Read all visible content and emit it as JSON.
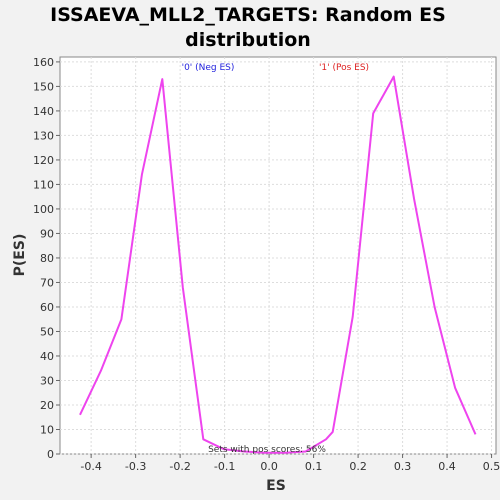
{
  "chart_data": {
    "type": "line",
    "title_lines": [
      "ISSAEVA_MLL2_TARGETS: Random ES",
      "distribution"
    ],
    "xlabel": "ES",
    "ylabel": "P(ES)",
    "xlim": [
      -0.47,
      0.51
    ],
    "ylim": [
      0,
      162
    ],
    "x_ticks": [
      -0.4,
      -0.3,
      -0.2,
      -0.1,
      0.0,
      0.1,
      0.2,
      0.3,
      0.4,
      0.5
    ],
    "x_tick_labels": [
      "-0.4",
      "-0.3",
      "-0.2",
      "-0.1",
      "0.0",
      "0.1",
      "0.2",
      "0.3",
      "0.4",
      "0.5"
    ],
    "y_ticks": [
      0,
      10,
      20,
      30,
      40,
      50,
      60,
      70,
      80,
      90,
      100,
      110,
      120,
      130,
      140,
      150,
      160
    ],
    "y_tick_labels": [
      "0",
      "10",
      "20",
      "30",
      "40",
      "50",
      "60",
      "70",
      "80",
      "90",
      "100",
      "110",
      "120",
      "130",
      "140",
      "150",
      "160"
    ],
    "grid": true,
    "line_color": "#ee44ee",
    "series": [
      {
        "x": [
          -0.425,
          -0.378,
          -0.332,
          -0.286,
          -0.24,
          -0.194,
          -0.148,
          -0.102,
          -0.056,
          -0.01,
          0.036,
          0.082,
          0.128,
          0.143,
          0.188,
          0.234,
          0.28,
          0.326,
          0.372,
          0.418,
          0.464
        ],
        "y": [
          16,
          34,
          55,
          114,
          153,
          68,
          6,
          2,
          1,
          0.5,
          0.5,
          1,
          6,
          9,
          56,
          139,
          154,
          104,
          60,
          27,
          8
        ]
      }
    ],
    "annotations": [
      {
        "text": "'0' (Neg ES)",
        "color": "#2222dd"
      },
      {
        "text": "'1' (Pos ES)",
        "color": "#dd2222"
      }
    ],
    "footnote": "Sets with pos scores: 56%"
  }
}
